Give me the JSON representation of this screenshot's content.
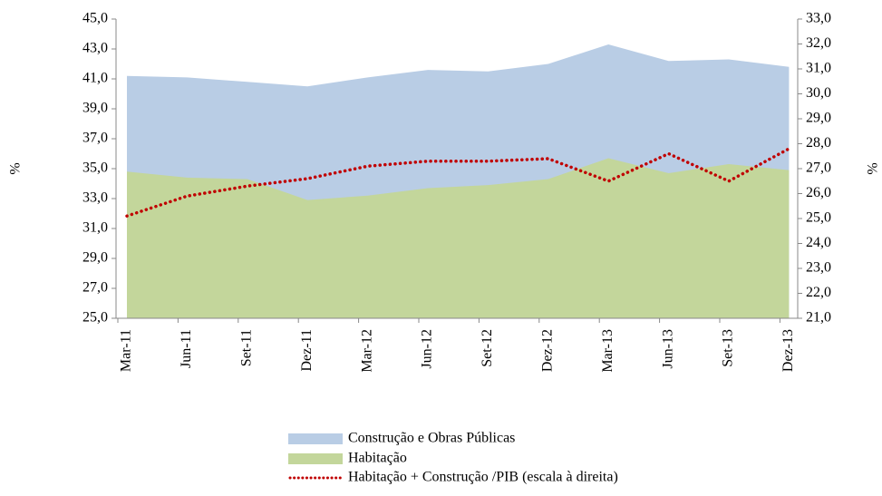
{
  "chart_data": {
    "type": "area",
    "y_label": "%",
    "y2_label": "%",
    "categories": [
      "Mar-11",
      "Jun-11",
      "Set-11",
      "Dez-11",
      "Mar-12",
      "Jun-12",
      "Set-12",
      "Dez-12",
      "Mar-13",
      "Jun-13",
      "Set-13",
      "Dez-13"
    ],
    "series": [
      {
        "name": "Construção e Obras Públicas",
        "type": "area",
        "color": "#b9cde5",
        "values": [
          41.2,
          41.1,
          40.8,
          40.5,
          41.1,
          41.6,
          41.5,
          42.0,
          43.3,
          42.2,
          42.3,
          41.8
        ]
      },
      {
        "name": "Habitação",
        "type": "area",
        "color": "#c3d69b",
        "values": [
          34.8,
          34.4,
          34.3,
          32.9,
          33.2,
          33.7,
          33.9,
          34.3,
          35.7,
          34.7,
          35.3,
          34.9
        ]
      },
      {
        "name": "Habitação + Construção /PIB (escala à direita)",
        "type": "line",
        "axis": "y2",
        "color": "#c00000",
        "values": [
          25.1,
          25.9,
          26.3,
          26.6,
          27.1,
          27.3,
          27.3,
          27.4,
          26.5,
          27.6,
          26.5,
          27.8
        ]
      }
    ],
    "ylim": [
      25,
      45
    ],
    "yticks": [
      {
        "value": 25,
        "label": "25,0"
      },
      {
        "value": 27,
        "label": "27,0"
      },
      {
        "value": 29,
        "label": "29,0"
      },
      {
        "value": 31,
        "label": "31,0"
      },
      {
        "value": 33,
        "label": "33,0"
      },
      {
        "value": 35,
        "label": "35,0"
      },
      {
        "value": 37,
        "label": "37,0"
      },
      {
        "value": 39,
        "label": "39,0"
      },
      {
        "value": 41,
        "label": "41,0"
      },
      {
        "value": 43,
        "label": "43,0"
      },
      {
        "value": 45,
        "label": "45,0"
      }
    ],
    "y2lim": [
      21,
      33
    ],
    "y2ticks": [
      {
        "value": 21,
        "label": "21,0"
      },
      {
        "value": 22,
        "label": "22,0"
      },
      {
        "value": 23,
        "label": "23,0"
      },
      {
        "value": 24,
        "label": "24,0"
      },
      {
        "value": 25,
        "label": "25,0"
      },
      {
        "value": 26,
        "label": "26,0"
      },
      {
        "value": 27,
        "label": "27,0"
      },
      {
        "value": 28,
        "label": "28,0"
      },
      {
        "value": 29,
        "label": "29,0"
      },
      {
        "value": 30,
        "label": "30,0"
      },
      {
        "value": 31,
        "label": "31,0"
      },
      {
        "value": 32,
        "label": "32,0"
      },
      {
        "value": 33,
        "label": "33,0"
      }
    ],
    "legend": "bottom"
  }
}
